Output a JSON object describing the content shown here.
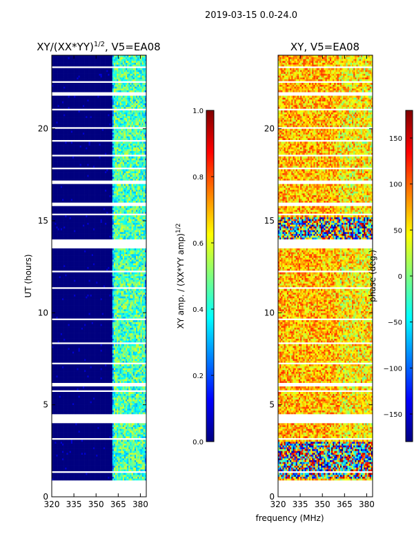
{
  "figure": {
    "suptitle": "2019-03-15 0.0-24.0",
    "xlabel_shared": "frequency (MHz)"
  },
  "colors": {
    "jet": [
      "#00007f",
      "#0000ff",
      "#007fff",
      "#00ffff",
      "#7fff7f",
      "#ffff00",
      "#ff7f00",
      "#ff0000",
      "#7f0000"
    ]
  },
  "chart_data": [
    {
      "type": "heatmap",
      "panel": "left",
      "title_main": "XY/(XX*YY)",
      "title_exp": "1/2",
      "title_suffix": ", V5=EA08",
      "ylabel": "UT (hours)",
      "xlim": [
        320,
        384
      ],
      "ylim": [
        0,
        24
      ],
      "x_ticks": [
        320,
        335,
        350,
        365,
        380
      ],
      "y_ticks": [
        0,
        5,
        10,
        15,
        20
      ],
      "colorbar": {
        "label_main": "XY amp. / (XX*YY amp)",
        "label_exp": "1/2",
        "range": [
          0.0,
          1.0
        ],
        "ticks": [
          0.0,
          0.2,
          0.4,
          0.6,
          0.8,
          1.0
        ],
        "tick_labels": [
          "0.0",
          "0.2",
          "0.4",
          "0.6",
          "0.8",
          "1.0"
        ]
      },
      "data_gaps_ut": [
        [
          0.0,
          0.9
        ],
        [
          1.35,
          1.4
        ],
        [
          3.15,
          3.2
        ],
        [
          4.0,
          4.55
        ],
        [
          5.75,
          5.85
        ],
        [
          6.05,
          6.2
        ],
        [
          7.2,
          7.3
        ],
        [
          8.3,
          8.4
        ],
        [
          9.65,
          9.75
        ],
        [
          11.3,
          11.4
        ],
        [
          12.2,
          12.3
        ],
        [
          13.5,
          14.0
        ],
        [
          15.3,
          15.4
        ],
        [
          15.85,
          16.0
        ],
        [
          17.0,
          17.2
        ],
        [
          17.8,
          17.95
        ],
        [
          18.55,
          18.65
        ],
        [
          19.3,
          19.4
        ],
        [
          20.05,
          20.15
        ],
        [
          21.05,
          21.15
        ],
        [
          21.85,
          22.0
        ],
        [
          22.55,
          22.65
        ],
        [
          23.3,
          23.4
        ]
      ],
      "description_values": {
        "low_freq_band_mhz": [
          320,
          361
        ],
        "low_freq_level": 0.0,
        "rfi_channels_mhz": [
          363,
          365,
          368,
          371,
          374,
          376,
          379,
          381
        ],
        "rfi_level": [
          0.3,
          0.6
        ]
      }
    },
    {
      "type": "heatmap",
      "panel": "right",
      "title": "XY, V5=EA08",
      "xlim": [
        320,
        384
      ],
      "ylim": [
        0,
        24
      ],
      "x_ticks": [
        320,
        335,
        350,
        365,
        380
      ],
      "y_ticks": [
        0,
        5,
        10,
        15,
        20
      ],
      "colorbar": {
        "label": "phase (deg.)",
        "range": [
          -180,
          180
        ],
        "ticks": [
          -150,
          -100,
          -50,
          0,
          50,
          100,
          150
        ],
        "tick_labels": [
          "−150",
          "−100",
          "−50",
          "0",
          "50",
          "100",
          "150"
        ]
      },
      "data_gaps_ut": [
        [
          0.0,
          0.9
        ],
        [
          1.35,
          1.4
        ],
        [
          3.15,
          3.2
        ],
        [
          4.0,
          4.55
        ],
        [
          5.75,
          5.85
        ],
        [
          6.05,
          6.2
        ],
        [
          7.2,
          7.3
        ],
        [
          8.3,
          8.4
        ],
        [
          9.65,
          9.75
        ],
        [
          11.3,
          11.4
        ],
        [
          12.2,
          12.3
        ],
        [
          13.5,
          14.0
        ],
        [
          15.3,
          15.4
        ],
        [
          15.85,
          16.0
        ],
        [
          17.0,
          17.2
        ],
        [
          17.8,
          17.95
        ],
        [
          18.55,
          18.65
        ],
        [
          19.3,
          19.4
        ],
        [
          20.05,
          20.15
        ],
        [
          21.05,
          21.15
        ],
        [
          21.85,
          22.0
        ],
        [
          22.55,
          22.65
        ],
        [
          23.3,
          23.4
        ]
      ],
      "description_values": {
        "dominant_phase_deg": [
          20,
          120
        ],
        "noisy_ut_ranges": [
          [
            1.0,
            3.0
          ],
          [
            14.0,
            15.2
          ]
        ]
      }
    }
  ]
}
